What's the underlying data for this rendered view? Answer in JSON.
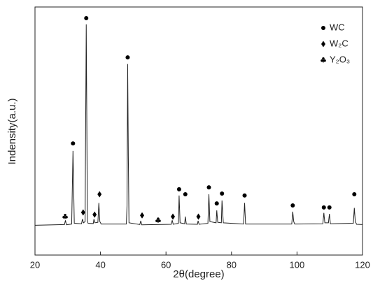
{
  "chart_data": {
    "type": "line",
    "x_label": "2θ(degree)",
    "y_label": "Indensity(a.u.)",
    "xlim": [
      20,
      120
    ],
    "xticks": [
      20,
      40,
      60,
      80,
      100,
      120
    ],
    "ylim": [
      0,
      100
    ],
    "color": "#222222",
    "x": [
      20,
      29.0,
      29.3,
      29.6,
      31.2,
      31.6,
      32.0,
      34.2,
      34.5,
      34.8,
      35.3,
      35.65,
      36.0,
      36.2,
      37.8,
      38.0,
      38.3,
      39.2,
      39.5,
      39.8,
      40.2,
      47.9,
      48.1,
      48.3,
      48.5,
      48.7,
      52.0,
      52.3,
      52.6,
      61.6,
      61.9,
      62.2,
      63.8,
      64.0,
      64.3,
      65.7,
      65.9,
      66.2,
      69.6,
      69.8,
      70.1,
      72.8,
      73.1,
      73.4,
      75.3,
      75.5,
      75.8,
      76.9,
      77.1,
      77.5,
      83.7,
      84.0,
      84.3,
      98.4,
      98.7,
      99.0,
      99.3,
      107.9,
      108.2,
      108.5,
      109.6,
      109.9,
      110.2,
      117.2,
      117.5,
      117.8,
      118.2,
      120
    ],
    "values": [
      12,
      12.3,
      14,
      12.2,
      12.5,
      42,
      12.8,
      12.6,
      14.5,
      13,
      13.5,
      93,
      14,
      12.8,
      12.7,
      14.5,
      13,
      13.2,
      21,
      13.5,
      12.5,
      12.5,
      20,
      77,
      40,
      13,
      12.3,
      13.8,
      12.2,
      12.4,
      14,
      12.4,
      12.8,
      24,
      13,
      12.6,
      15.5,
      12.5,
      12.4,
      13.8,
      12.4,
      12.8,
      24.5,
      13.5,
      13,
      18,
      13.2,
      13,
      22,
      13,
      12.5,
      21,
      12.5,
      12.5,
      17.5,
      13.5,
      12.5,
      12.6,
      17,
      13,
      13,
      16.6,
      12.6,
      12.8,
      19,
      13.5,
      12.4,
      12.3
    ],
    "phases": [
      {
        "name": "WC",
        "marker": "circle",
        "x": [
          31.6,
          35.65,
          48.3,
          64.0,
          65.9,
          73.1,
          75.5,
          77.1,
          84.0,
          98.7,
          108.2,
          109.9,
          117.5
        ],
        "values": [
          45,
          95.5,
          79.7,
          26.5,
          24.5,
          27.3,
          20.8,
          24.8,
          24,
          20,
          19.2,
          19.2,
          24.5
        ]
      },
      {
        "name": "W₂C",
        "marker": "diamond",
        "x": [
          34.7,
          38.2,
          39.7,
          52.7,
          62.1,
          69.9
        ],
        "values": [
          17.2,
          16.3,
          24.5,
          16,
          15.5,
          15.5
        ]
      },
      {
        "name": "Y₂O₃",
        "marker": "club",
        "x": [
          29.2,
          57.6
        ],
        "values": [
          15.5,
          14
        ]
      }
    ]
  }
}
